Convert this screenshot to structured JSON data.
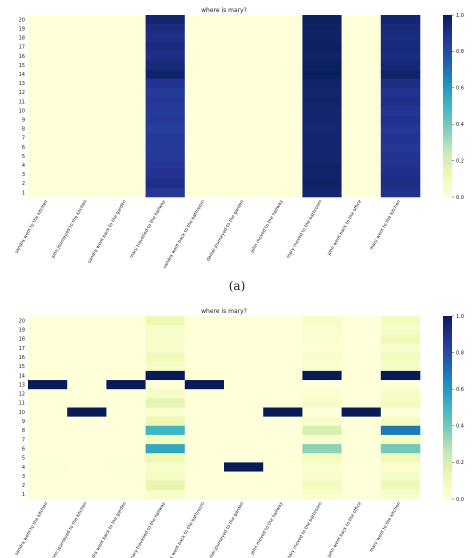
{
  "chart_data": [
    {
      "type": "heatmap",
      "title": "where is mary?",
      "caption": "(a)",
      "x_categories": [
        "sandra went to the kitchen",
        "john journeyed to the kitchen",
        "sandra went back to the garden",
        "mary travelled to the hallway",
        "sandra went back to the bathroom",
        "daniel journeyed to the garden",
        "john moved to the hallway",
        "mary moved to the bathroom",
        "john went back to the office",
        "mary went to the kitchen"
      ],
      "y_categories": [
        "20",
        "19",
        "18",
        "17",
        "16",
        "15",
        "14",
        "13",
        "12",
        "11",
        "10",
        "9",
        "8",
        "7",
        "6",
        "5",
        "4",
        "3",
        "2",
        "1"
      ],
      "values": [
        [
          0,
          0,
          0,
          0.95,
          0,
          0,
          0,
          0.98,
          0,
          0.95
        ],
        [
          0,
          0,
          0,
          0.92,
          0,
          0,
          0,
          0.97,
          0,
          0.93
        ],
        [
          0,
          0,
          0,
          0.9,
          0,
          0,
          0,
          0.97,
          0,
          0.92
        ],
        [
          0,
          0,
          0,
          0.92,
          0,
          0,
          0,
          0.98,
          0,
          0.93
        ],
        [
          0,
          0,
          0,
          0.9,
          0,
          0,
          0,
          0.97,
          0,
          0.92
        ],
        [
          0,
          0,
          0,
          0.93,
          0,
          0,
          0,
          0.98,
          0,
          0.94
        ],
        [
          0,
          0,
          0,
          0.96,
          0,
          0,
          0,
          0.99,
          0,
          0.96
        ],
        [
          0,
          0,
          0,
          0.88,
          0,
          0,
          0,
          0.96,
          0,
          0.91
        ],
        [
          0,
          0,
          0,
          0.85,
          0,
          0,
          0,
          0.95,
          0,
          0.88
        ],
        [
          0,
          0,
          0,
          0.87,
          0,
          0,
          0,
          0.96,
          0,
          0.9
        ],
        [
          0,
          0,
          0,
          0.85,
          0,
          0,
          0,
          0.95,
          0,
          0.88
        ],
        [
          0,
          0,
          0,
          0.86,
          0,
          0,
          0,
          0.95,
          0,
          0.89
        ],
        [
          0,
          0,
          0,
          0.84,
          0,
          0,
          0,
          0.94,
          0,
          0.87
        ],
        [
          0,
          0,
          0,
          0.86,
          0,
          0,
          0,
          0.95,
          0,
          0.88
        ],
        [
          0,
          0,
          0,
          0.85,
          0,
          0,
          0,
          0.95,
          0,
          0.87
        ],
        [
          0,
          0,
          0,
          0.86,
          0,
          0,
          0,
          0.95,
          0,
          0.88
        ],
        [
          0,
          0,
          0,
          0.87,
          0,
          0,
          0,
          0.96,
          0,
          0.89
        ],
        [
          0,
          0,
          0,
          0.88,
          0,
          0,
          0,
          0.96,
          0,
          0.9
        ],
        [
          0,
          0,
          0,
          0.9,
          0,
          0,
          0,
          0.97,
          0,
          0.91
        ],
        [
          0,
          0,
          0,
          0.87,
          0,
          0,
          0,
          0.95,
          0,
          0.89
        ]
      ],
      "colorbar": {
        "range": [
          0,
          1.0
        ],
        "ticks": [
          "0.0",
          "0.2",
          "0.4",
          "0.6",
          "0.8",
          "1.0"
        ],
        "colormap": "YlGnBu"
      }
    },
    {
      "type": "heatmap",
      "title": "where is mary?",
      "caption": "",
      "x_categories": [
        "sandra went to the kitchen",
        "john journeyed to the kitchen",
        "sandra went back to the garden",
        "mary travelled to the hallway",
        "sandra went back to the bathroom",
        "daniel journeyed to the garden",
        "john moved to the hallway",
        "mary moved to the bathroom",
        "john went back to the office",
        "mary went to the kitchen"
      ],
      "y_categories": [
        "20",
        "19",
        "18",
        "17",
        "16",
        "15",
        "14",
        "13",
        "12",
        "11",
        "10",
        "9",
        "8",
        "7",
        "6",
        "5",
        "4",
        "3",
        "2",
        "1"
      ],
      "values": [
        [
          0,
          0,
          0,
          0.12,
          0,
          0,
          0,
          0.05,
          0,
          0.08
        ],
        [
          0,
          0,
          0,
          0.05,
          0,
          0,
          0,
          0.03,
          0,
          0.06
        ],
        [
          0,
          0,
          0,
          0.04,
          0,
          0,
          0,
          0.03,
          0,
          0.1
        ],
        [
          0,
          0,
          0,
          0.05,
          0,
          0,
          0,
          0.02,
          0,
          0.04
        ],
        [
          0,
          0,
          0,
          0.1,
          0,
          0,
          0,
          0.05,
          0,
          0.08
        ],
        [
          0,
          0,
          0,
          0.05,
          0,
          0,
          0,
          0.03,
          0,
          0.05
        ],
        [
          0,
          0,
          0,
          1.0,
          0,
          0,
          0,
          1.0,
          0,
          1.0
        ],
        [
          1.0,
          0,
          1.0,
          0,
          1.0,
          0,
          0,
          0,
          0,
          0
        ],
        [
          0,
          0,
          0,
          0.06,
          0,
          0,
          0,
          0.03,
          0,
          0.05
        ],
        [
          0,
          0,
          0,
          0.15,
          0,
          0,
          0,
          0.05,
          0,
          0.08
        ],
        [
          0,
          1.0,
          0,
          0.03,
          0,
          0,
          1.0,
          0,
          1.0,
          0
        ],
        [
          0,
          0,
          0,
          0.12,
          0,
          0,
          0,
          0.05,
          0,
          0.08
        ],
        [
          0,
          0,
          0,
          0.5,
          0,
          0,
          0,
          0.2,
          0,
          0.68
        ],
        [
          0,
          0,
          0,
          0.08,
          0,
          0,
          0,
          0.05,
          0,
          0.08
        ],
        [
          0,
          0,
          0,
          0.55,
          0,
          0,
          0,
          0.35,
          0,
          0.4
        ],
        [
          0,
          0,
          0,
          0.12,
          0,
          0,
          0,
          0.08,
          0,
          0.1
        ],
        [
          0.02,
          0,
          0.02,
          0.04,
          0,
          1.0,
          0,
          0.03,
          0,
          0.03
        ],
        [
          0,
          0,
          0,
          0.06,
          0,
          0,
          0,
          0.04,
          0,
          0.06
        ],
        [
          0,
          0,
          0,
          0.14,
          0,
          0,
          0,
          0.08,
          0,
          0.1
        ],
        [
          0,
          0,
          0,
          0.05,
          0,
          0,
          0,
          0.04,
          0,
          0.05
        ]
      ],
      "colorbar": {
        "range": [
          0,
          1.0
        ],
        "ticks": [
          "0.0",
          "0.2",
          "0.4",
          "0.6",
          "0.8",
          "1.0"
        ],
        "colormap": "YlGnBu"
      }
    }
  ]
}
